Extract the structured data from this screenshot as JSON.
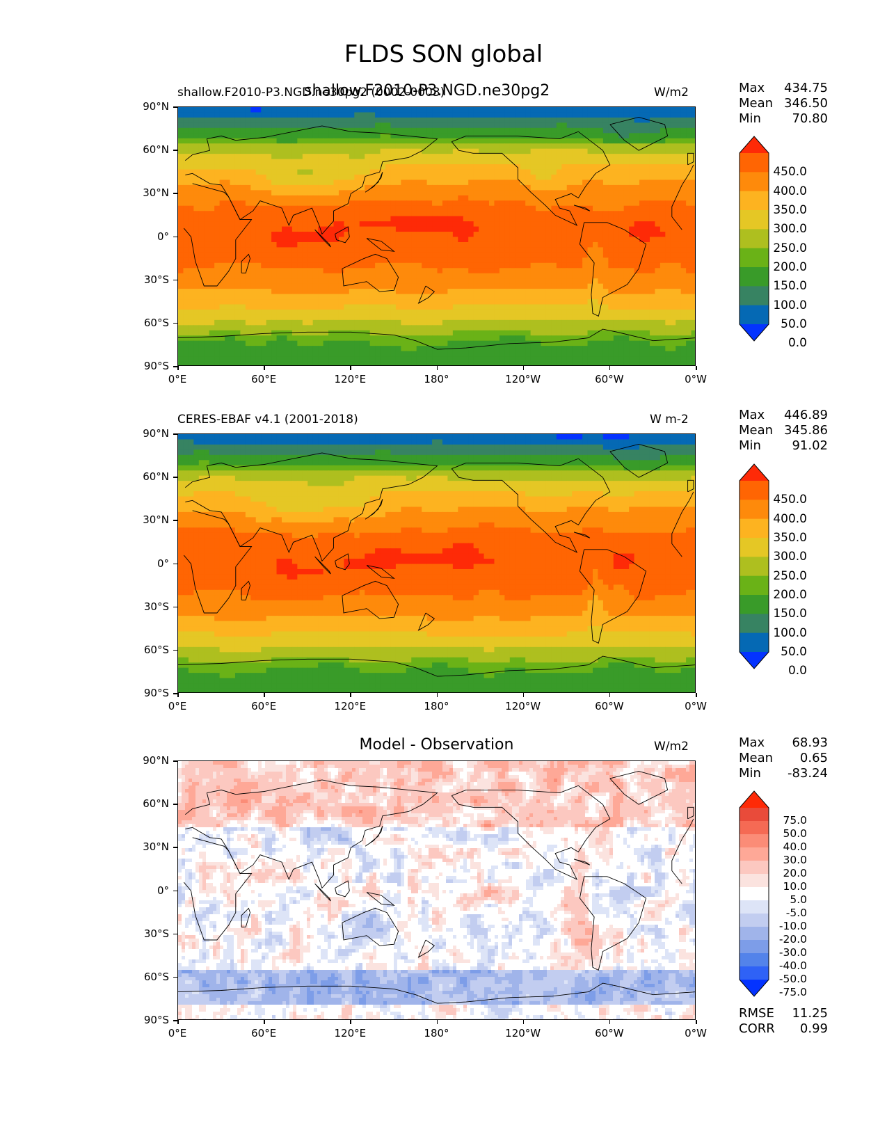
{
  "title": "FLDS SON global",
  "colors": {
    "seq": [
      "#0433ff",
      "#0569b4",
      "#378362",
      "#399b29",
      "#6ab217",
      "#aebf1f",
      "#e5c725",
      "#fdb320",
      "#fe8a0b",
      "#ff6503",
      "#fe2a07"
    ],
    "div": [
      "#0433ff",
      "#2f62f6",
      "#5383ea",
      "#7d9de8",
      "#a0b4ea",
      "#c2cdf0",
      "#dde4f7",
      "#ffffff",
      "#fbe3df",
      "#fcc8c0",
      "#fea897",
      "#fb8c77",
      "#f56a54",
      "#e94b3a",
      "#fe2a07"
    ]
  },
  "chart_data": [
    {
      "type": "heatmap",
      "panel": "test",
      "title_left": "shallow.F2010-P3.NGD.ne30pg2 (0002-0003)",
      "title_center": "shallow.F2010-P3.NGD.ne30pg2",
      "title_right": "W/m2",
      "stats": {
        "max": "434.75",
        "mean": "346.50",
        "min": "70.80"
      },
      "colorbar_levels": [
        "450.0",
        "400.0",
        "350.0",
        "300.0",
        "250.0",
        "200.0",
        "150.0",
        "100.0",
        "50.0",
        "0.0"
      ],
      "x_ticks": [
        "0°E",
        "60°E",
        "120°E",
        "180°",
        "120°W",
        "60°W",
        "0°W"
      ],
      "y_ticks": [
        "90°N",
        "60°N",
        "30°N",
        "0°",
        "30°S",
        "60°S",
        "90°S"
      ],
      "xlim": [
        0,
        360
      ],
      "ylim": [
        -90,
        90
      ]
    },
    {
      "type": "heatmap",
      "panel": "reference",
      "title_left": "CERES-EBAF v4.1 (2001-2018)",
      "title_right": "W m-2",
      "stats": {
        "max": "446.89",
        "mean": "345.86",
        "min": "91.02"
      },
      "colorbar_levels": [
        "450.0",
        "400.0",
        "350.0",
        "300.0",
        "250.0",
        "200.0",
        "150.0",
        "100.0",
        "50.0",
        "0.0"
      ],
      "x_ticks": [
        "0°E",
        "60°E",
        "120°E",
        "180°",
        "120°W",
        "60°W",
        "0°W"
      ],
      "y_ticks": [
        "90°N",
        "60°N",
        "30°N",
        "0°",
        "30°S",
        "60°S",
        "90°S"
      ],
      "xlim": [
        0,
        360
      ],
      "ylim": [
        -90,
        90
      ]
    },
    {
      "type": "heatmap",
      "panel": "difference",
      "title_center": "Model - Observation",
      "title_right": "W/m2",
      "stats": {
        "max": "68.93",
        "mean": "0.65",
        "min": "-83.24",
        "rmse": "11.25",
        "corr": "0.99"
      },
      "colorbar_levels": [
        "75.0",
        "50.0",
        "40.0",
        "30.0",
        "20.0",
        "10.0",
        "5.0",
        "-5.0",
        "-10.0",
        "-20.0",
        "-30.0",
        "-40.0",
        "-50.0",
        "-75.0"
      ],
      "x_ticks": [
        "0°E",
        "60°E",
        "120°E",
        "180°",
        "120°W",
        "60°W",
        "0°W"
      ],
      "y_ticks": [
        "90°N",
        "60°N",
        "30°N",
        "0°",
        "30°S",
        "60°S",
        "90°S"
      ],
      "xlim": [
        0,
        360
      ],
      "ylim": [
        -90,
        90
      ]
    }
  ],
  "labels": {
    "max": "Max",
    "mean": "Mean",
    "min": "Min",
    "rmse": "RMSE",
    "corr": "CORR"
  }
}
